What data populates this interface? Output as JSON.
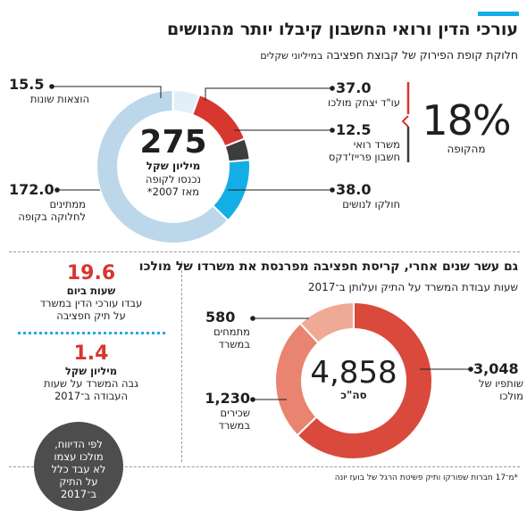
{
  "header": {
    "title": "עורכי הדין ורואי החשבון קיבלו יותר מהנושים",
    "subtitle_main": "חלוקת קופת הפירוק של קבוצת חפציבה",
    "subtitle_unit": "במיליוני שקלים"
  },
  "center1": {
    "value": "275",
    "unit": "מיליון שקל",
    "line1": "נכנסו לקופה",
    "line2": "מאז 2007*"
  },
  "center2": {
    "value": "4,858",
    "unit": "סה\"כ"
  },
  "big_pct": {
    "value": "18%",
    "label": "מהקופה"
  },
  "labels1": {
    "misc": {
      "value": "15.5",
      "text": "הוצאות שונות"
    },
    "mulcho": {
      "value": "37.0",
      "text": "עו\"ד יצחק מולכו"
    },
    "cpa": {
      "value": "12.5",
      "line1": "משרד רואי",
      "line2": "חשבון פרייז'דקס"
    },
    "creditors": {
      "value": "38.0",
      "text": "חולקו לנושים"
    },
    "waiting": {
      "value": "172.0",
      "line1": "ממתינים",
      "line2": "לחלוקה בקופה"
    }
  },
  "section2": {
    "title": "גם עשר שנים אחרי, קריסת חפציבה מפרנסת את משרדו של מולכו",
    "subtitle": "שעות עבודת המשרד על התיק ועלותן ב־2017"
  },
  "labels2": {
    "interns": {
      "value": "580",
      "line1": "מתמחים",
      "line2": "במשרד"
    },
    "partners": {
      "value": "3,048",
      "line1": "שותפיו של",
      "line2": "מולכו"
    },
    "employees": {
      "value": "1,230",
      "line1": "שכירים",
      "line2": "במשרד"
    }
  },
  "sidebar": {
    "hours_value": "19.6",
    "hours_unit": "שעות ביום",
    "hours_line1": "עבדו עורכי הדין במשרד",
    "hours_line2": "על תיק חפציבה",
    "cost_value": "1.4",
    "cost_unit": "מיליון שקל",
    "cost_line1": "גבה המשרד על שעות",
    "cost_line2": "העבודה ב־2017",
    "note_line1": "לפי הדיווח,",
    "note_line2": "מולכו עצמו",
    "note_line3": "לא עבד כלל",
    "note_line4": "על התיק",
    "note_line5": "ב־2017"
  },
  "footnote": "*מ־17 חברות שפורקו ותיק פשיטת הרגל של בועז יונה",
  "colors": {
    "accent": "#14aee6",
    "red": "#d7372f",
    "dark": "#3d3d3d",
    "blue": "#14aee6",
    "lightblue": "#bcd7ea",
    "paleblue": "#e3eff8",
    "salmon": "#e8846f",
    "salmon_light": "#eeaa94",
    "red_main": "#d94a3c"
  },
  "chart_data": [
    {
      "type": "pie",
      "title": "חלוקת קופת הפירוק של קבוצת חפציבה",
      "total": 275,
      "slices": [
        {
          "name": "עו\"ד יצחק מולכו",
          "value": 37.0
        },
        {
          "name": "משרד רואי חשבון פרייז'דקס",
          "value": 12.5
        },
        {
          "name": "חולקו לנושים",
          "value": 38.0
        },
        {
          "name": "ממתינים לחלוקה בקופה",
          "value": 172.0
        },
        {
          "name": "הוצאות שונות",
          "value": 15.5
        }
      ]
    },
    {
      "type": "pie",
      "title": "שעות עבודת המשרד על התיק ועלותן ב־2017",
      "total": 4858,
      "slices": [
        {
          "name": "שותפיו של מולכו",
          "value": 3048
        },
        {
          "name": "שכירים במשרד",
          "value": 1230
        },
        {
          "name": "מתמחים במשרד",
          "value": 580
        }
      ]
    }
  ]
}
